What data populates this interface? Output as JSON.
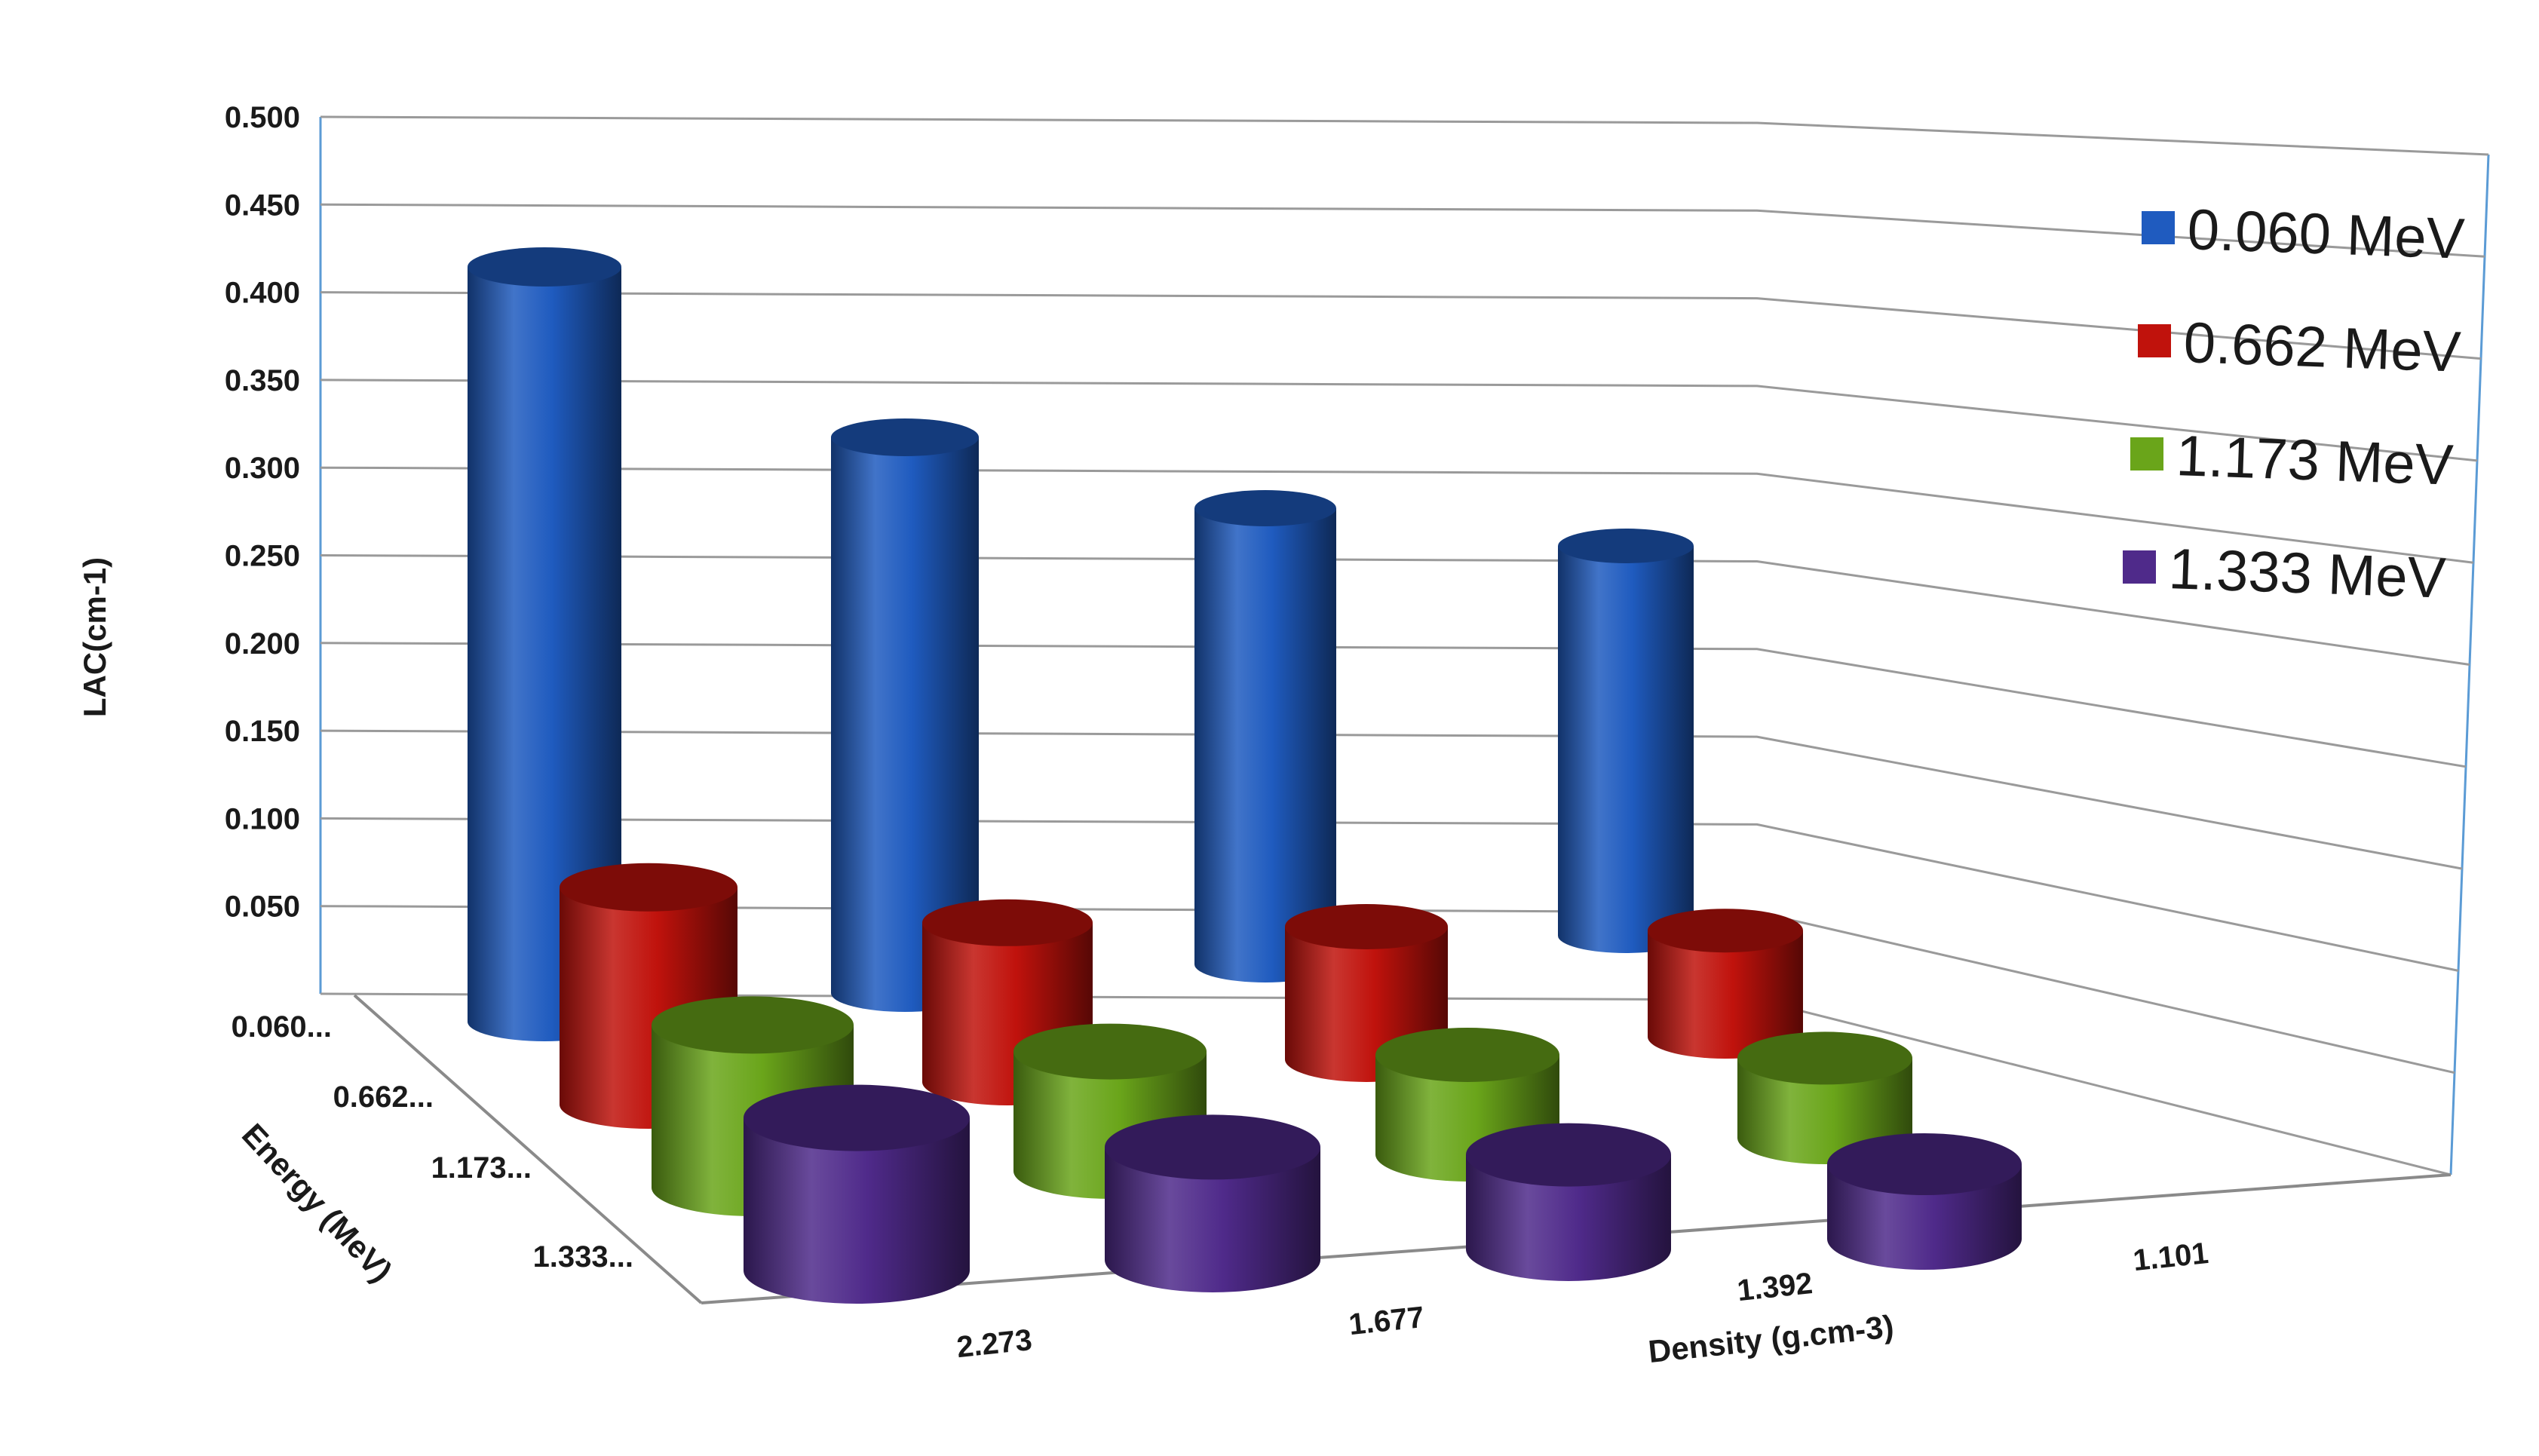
{
  "chart_data": {
    "type": "bar",
    "variant": "3d-cylinder",
    "title": "",
    "xlabel": "Density (g.cm-3)",
    "ylabel": "LAC(cm-1)",
    "zlabel": "Energy (MeV)",
    "categories": [
      "2.273",
      "1.677",
      "1.392",
      "1.101"
    ],
    "depth_tick_labels": [
      "0.060...",
      "0.662...",
      "1.173...",
      "1.333..."
    ],
    "ylim": [
      0,
      0.5
    ],
    "yticks": [
      "0.050",
      "0.100",
      "0.150",
      "0.200",
      "0.250",
      "0.300",
      "0.350",
      "0.400",
      "0.450",
      "0.500"
    ],
    "grid": true,
    "legend_position": "right",
    "series": [
      {
        "name": "0.060 MeV",
        "color": "#1f5bbf",
        "values": [
          0.455,
          0.335,
          0.275,
          0.235
        ]
      },
      {
        "name": "0.662 MeV",
        "color": "#c0120c",
        "values": [
          0.131,
          0.096,
          0.08,
          0.064
        ]
      },
      {
        "name": "1.173 MeV",
        "color": "#6aa51a",
        "values": [
          0.098,
          0.072,
          0.06,
          0.048
        ]
      },
      {
        "name": "1.333 MeV",
        "color": "#4f2a8a",
        "values": [
          0.092,
          0.068,
          0.057,
          0.045
        ]
      }
    ]
  }
}
